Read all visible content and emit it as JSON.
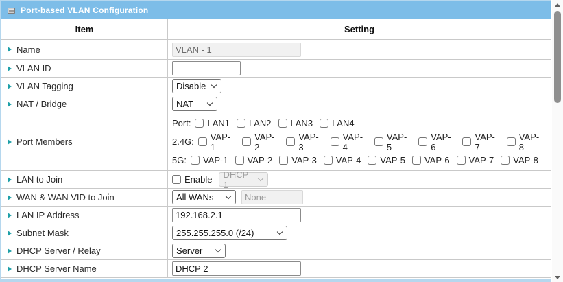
{
  "titlebar": {
    "title": "Port-based VLAN Configuration"
  },
  "header": {
    "item": "Item",
    "setting": "Setting"
  },
  "rows": {
    "name": {
      "label": "Name",
      "value": "VLAN - 1",
      "disabled": true
    },
    "vlan_id": {
      "label": "VLAN ID",
      "value": ""
    },
    "vlan_tagging": {
      "label": "VLAN Tagging",
      "selected": "Disable"
    },
    "nat_bridge": {
      "label": "NAT / Bridge",
      "selected": "NAT"
    },
    "port_members": {
      "label": "Port Members",
      "groups": [
        {
          "prefix": "Port:",
          "options": [
            "LAN1",
            "LAN2",
            "LAN3",
            "LAN4"
          ],
          "checked_labels": []
        },
        {
          "prefix": "2.4G:",
          "options": [
            "VAP-1",
            "VAP-2",
            "VAP-3",
            "VAP-4",
            "VAP-5",
            "VAP-6",
            "VAP-7",
            "VAP-8"
          ],
          "checked_labels": []
        },
        {
          "prefix": "5G:",
          "options": [
            "VAP-1",
            "VAP-2",
            "VAP-3",
            "VAP-4",
            "VAP-5",
            "VAP-6",
            "VAP-7",
            "VAP-8"
          ],
          "checked_labels": []
        }
      ]
    },
    "lan_to_join": {
      "label": "LAN to Join",
      "checkbox_label": "Enable",
      "checkbox_checked": false,
      "selected": "DHCP 1",
      "select_disabled": true
    },
    "wan_join": {
      "label": "WAN & WAN VID to Join",
      "selected": "All WANs",
      "vid_value": "None",
      "vid_disabled": true
    },
    "lan_ip": {
      "label": "LAN IP Address",
      "value": "192.168.2.1"
    },
    "subnet": {
      "label": "Subnet Mask",
      "selected": "255.255.255.0 (/24)"
    },
    "dhcp_mode": {
      "label": "DHCP Server / Relay",
      "selected": "Server"
    },
    "dhcp_name": {
      "label": "DHCP Server Name",
      "value": "DHCP 2"
    }
  },
  "colors": {
    "titlebar_bg": "#7dbde8",
    "frame_border": "#b5d7ee",
    "grid_line": "#c9c9c9",
    "bullet": "#1fa0a8"
  }
}
